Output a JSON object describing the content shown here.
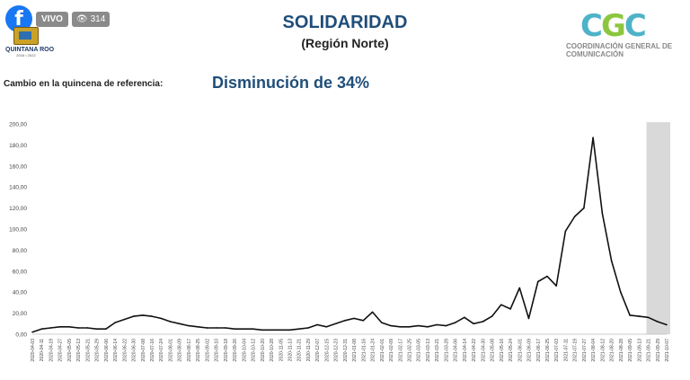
{
  "overlay": {
    "live_label": "VIVO",
    "viewer_count": "314",
    "fb_icon": "facebook-f-icon",
    "eye_icon": "eye-icon"
  },
  "brand": {
    "state_name": "QUINTANA ROO",
    "state_years": "2016 • 2022",
    "agency_logo": "CGC",
    "agency_name": "COORDINACIÓN GENERAL DE COMUNICACIÓN"
  },
  "header": {
    "title": "SOLIDARIDAD",
    "subtitle": "(Región Norte)"
  },
  "summary": {
    "label": "Cambio en la quincena de referencia:",
    "value": "Disminución de 34%"
  },
  "chart_data": {
    "type": "line",
    "title": "",
    "xlabel": "",
    "ylabel": "",
    "ylim": [
      0,
      200
    ],
    "yticks": [
      "0,00",
      "20,00",
      "40,00",
      "60,00",
      "80,00",
      "100,00",
      "120,00",
      "140,00",
      "160,00",
      "180,00",
      "200,00"
    ],
    "x_tick_labels": [
      "2020-04-03",
      "2020-04-11",
      "2020-04-19",
      "2020-04-27",
      "2020-05-05",
      "2020-05-13",
      "2020-05-21",
      "2020-05-29",
      "2020-06-06",
      "2020-06-14",
      "2020-06-22",
      "2020-06-30",
      "2020-07-08",
      "2020-07-16",
      "2020-07-24",
      "2020-08-01",
      "2020-08-09",
      "2020-08-17",
      "2020-08-25",
      "2020-09-02",
      "2020-09-10",
      "2020-09-18",
      "2020-09-26",
      "2020-10-04",
      "2020-10-12",
      "2020-10-20",
      "2020-10-28",
      "2020-11-05",
      "2020-11-13",
      "2020-11-21",
      "2020-11-29",
      "2020-12-07",
      "2020-12-15",
      "2020-12-23",
      "2020-12-31",
      "2021-01-08",
      "2021-01-16",
      "2021-01-24",
      "2021-02-01",
      "2021-02-09",
      "2021-02-17",
      "2021-02-25",
      "2021-03-05",
      "2021-03-13",
      "2021-03-21",
      "2021-03-29",
      "2021-04-06",
      "2021-04-14",
      "2021-04-22",
      "2021-04-30",
      "2021-05-08",
      "2021-05-16",
      "2021-05-24",
      "2021-06-01",
      "2021-06-09",
      "2021-06-17",
      "2021-06-25",
      "2021-07-03",
      "2021-07-11",
      "2021-07-19",
      "2021-07-27",
      "2021-08-04",
      "2021-08-12",
      "2021-08-20",
      "2021-08-28",
      "2021-09-05",
      "2021-09-13",
      "2021-09-21",
      "2021-09-29",
      "2021-10-07"
    ],
    "x": [
      "2020-04-03",
      "2020-04-11",
      "2020-04-19",
      "2020-04-27",
      "2020-05-05",
      "2020-05-13",
      "2020-05-21",
      "2020-05-29",
      "2020-06-06",
      "2020-06-14",
      "2020-06-22",
      "2020-06-30",
      "2020-07-08",
      "2020-07-16",
      "2020-07-24",
      "2020-08-01",
      "2020-08-09",
      "2020-08-17",
      "2020-08-25",
      "2020-09-02",
      "2020-09-10",
      "2020-09-18",
      "2020-09-26",
      "2020-10-04",
      "2020-10-12",
      "2020-10-20",
      "2020-10-28",
      "2020-11-05",
      "2020-11-13",
      "2020-11-21",
      "2020-11-29",
      "2020-12-07",
      "2020-12-15",
      "2020-12-23",
      "2020-12-31",
      "2021-01-08",
      "2021-01-16",
      "2021-01-24",
      "2021-02-01",
      "2021-02-09",
      "2021-02-17",
      "2021-02-25",
      "2021-03-05",
      "2021-03-13",
      "2021-03-21",
      "2021-03-29",
      "2021-04-06",
      "2021-04-14",
      "2021-04-22",
      "2021-04-30",
      "2021-05-08",
      "2021-05-16",
      "2021-05-24",
      "2021-06-01",
      "2021-06-09",
      "2021-06-17",
      "2021-06-25",
      "2021-07-03",
      "2021-07-11",
      "2021-07-19",
      "2021-07-27",
      "2021-08-04",
      "2021-08-12",
      "2021-08-20",
      "2021-08-28",
      "2021-09-05",
      "2021-09-13",
      "2021-09-21",
      "2021-09-29",
      "2021-10-07"
    ],
    "series": [
      {
        "values": [
          2,
          5,
          6,
          7,
          7,
          6,
          6,
          5,
          5,
          11,
          14,
          17,
          18,
          17,
          15,
          12,
          10,
          8,
          7,
          6,
          6,
          6,
          5,
          5,
          5,
          4,
          4,
          4,
          4,
          5,
          6,
          9,
          7,
          10,
          13,
          15,
          13,
          21,
          11,
          8,
          7,
          7,
          8,
          7,
          9,
          8,
          11,
          16,
          10,
          12,
          17,
          28,
          24,
          44,
          15,
          50,
          55,
          46,
          98,
          112,
          120,
          187,
          115,
          70,
          40,
          18,
          17,
          16,
          12,
          9
        ]
      }
    ],
    "shaded_region": {
      "from": "2021-09-21",
      "to": "2021-10-07"
    },
    "line_color": "#111111",
    "shade_color": "#d9d9d9",
    "grid": false
  }
}
